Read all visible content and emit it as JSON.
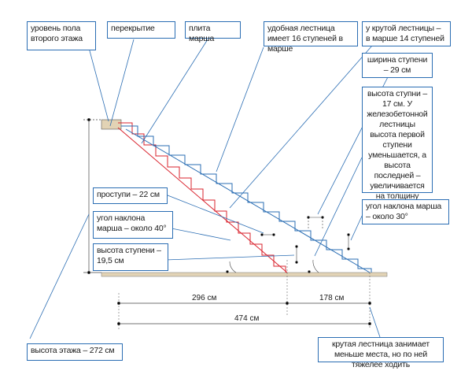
{
  "labels": {
    "floor_level": "уровень пола второго этажа",
    "slab": "перекрытие",
    "flight_slab": "плита марша",
    "comfortable_stair": "удобная лестница имеет 16 ступеней в марше",
    "steep_stair": "у крутой лестницы – в марше 14 ступеней",
    "step_width": "ширина ступени – 29 см",
    "step_height_steep": "высота ступни – 17 см. У железобетонной лестницы высота первой ступени уменьшается, а высота последней – увеличивается на толщину облицовки",
    "flight_angle_steep": "угол наклона марша – около 30°",
    "tread": "проступи – 22 см",
    "flight_angle": "угол наклона марша – около 40°",
    "step_height": "высота ступени –19,5 см",
    "floor_height": "высота этажа – 272 см",
    "steep_note": "крутая лестница занимает меньше места, но по ней тяжелее ходить"
  },
  "dimensions": {
    "d1": "296 см",
    "d2": "178 см",
    "total": "474 см"
  },
  "colors": {
    "blue": "#2a6db3",
    "red": "#d9232e",
    "floor": "#e2d3b5"
  }
}
